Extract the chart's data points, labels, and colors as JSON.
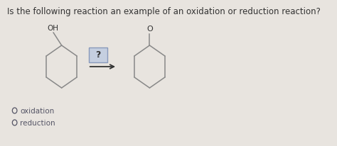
{
  "question_text": "Is the following reaction an example of an oxidation or reduction reaction?",
  "bg_color": "#e8e4df",
  "question_fontsize": 8.5,
  "option1": "oxidation",
  "option2": "reduction",
  "option_fontsize": 7.5,
  "arrow_label": "?",
  "molecule_color": "#888888",
  "text_color": "#333333",
  "option_color": "#555566",
  "box_fill": "#c5cfe0",
  "box_edge": "#8899bb",
  "oh_color": "#333333",
  "o_color": "#333333"
}
